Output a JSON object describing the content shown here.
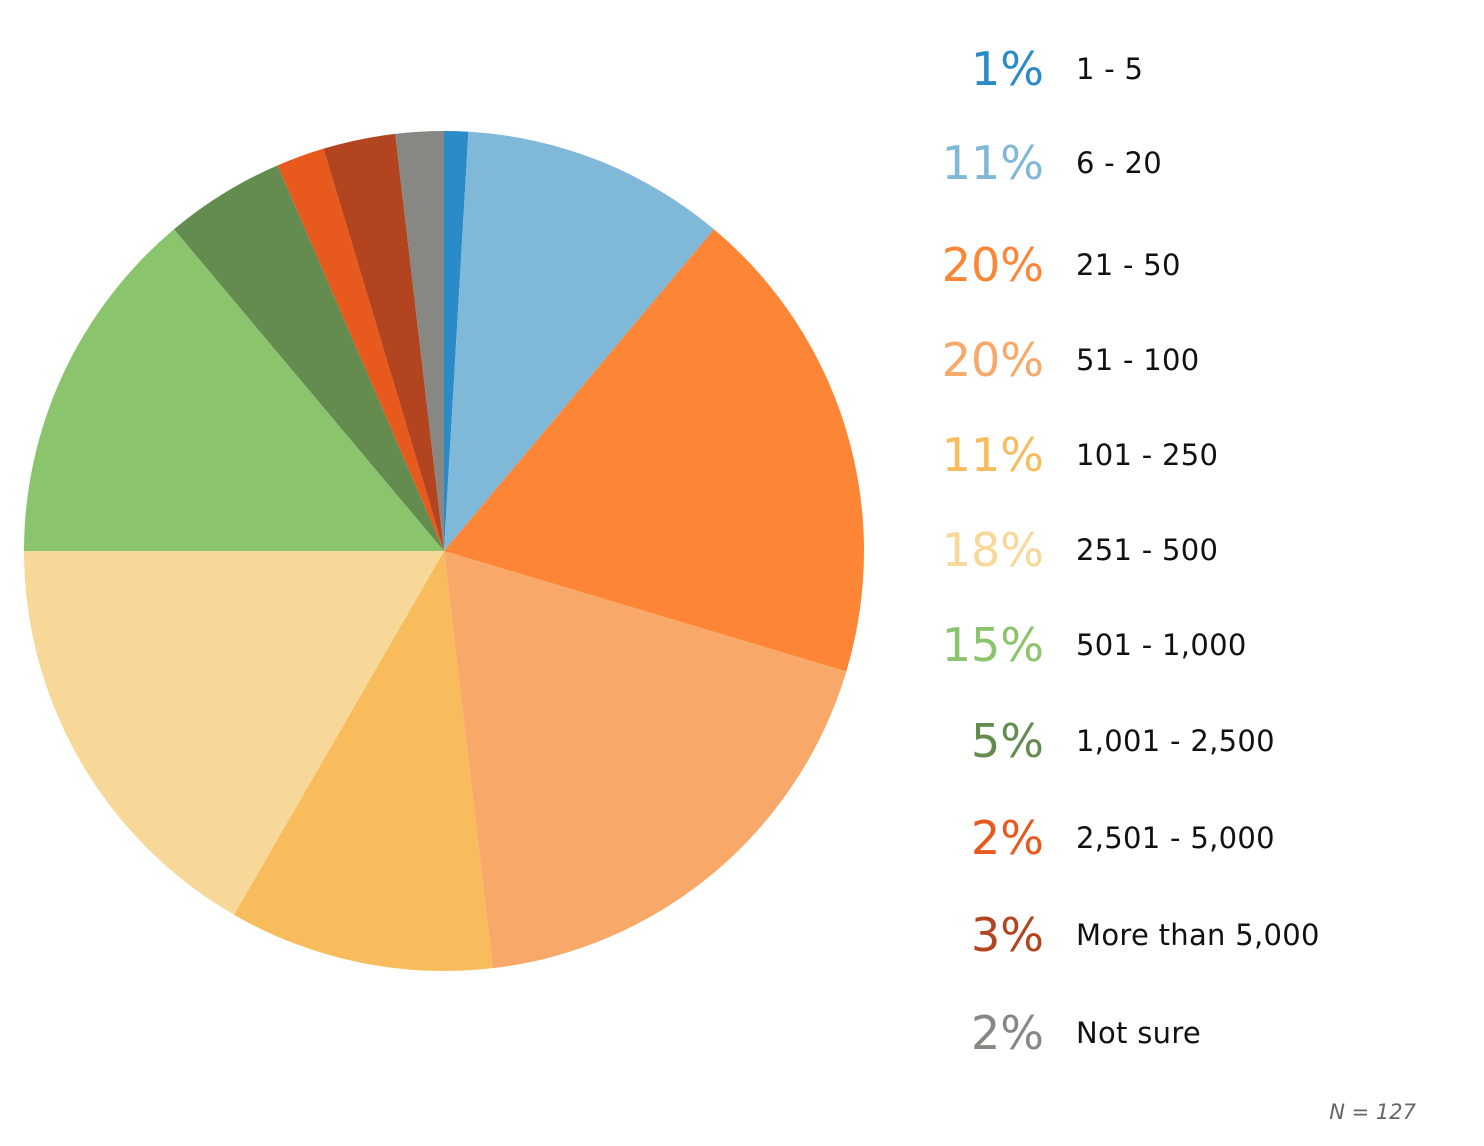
{
  "chart_data": {
    "type": "pie",
    "categories": [
      "1 - 5",
      "6 - 20",
      "21 - 50",
      "51 - 100",
      "101 - 250",
      "251 - 500",
      "501 - 1,000",
      "1,001 - 2,500",
      "2,501 - 5,000",
      "More than 5,000",
      "Not sure"
    ],
    "values": [
      1,
      11,
      20,
      20,
      11,
      18,
      15,
      5,
      2,
      3,
      2
    ],
    "value_labels": [
      "1%",
      "11%",
      "20%",
      "20%",
      "11%",
      "18%",
      "15%",
      "5%",
      "2%",
      "3%",
      "2%"
    ],
    "colors": [
      "#2a8bc8",
      "#80b8d8",
      "#fc8636",
      "#f8a868",
      "#f8bc5c",
      "#f8d898",
      "#8ac46c",
      "#638c4e",
      "#e8591e",
      "#b2441f",
      "#878783"
    ],
    "start": "top",
    "direction": "clockwise",
    "legend_position": "right",
    "note": "N = 127"
  }
}
